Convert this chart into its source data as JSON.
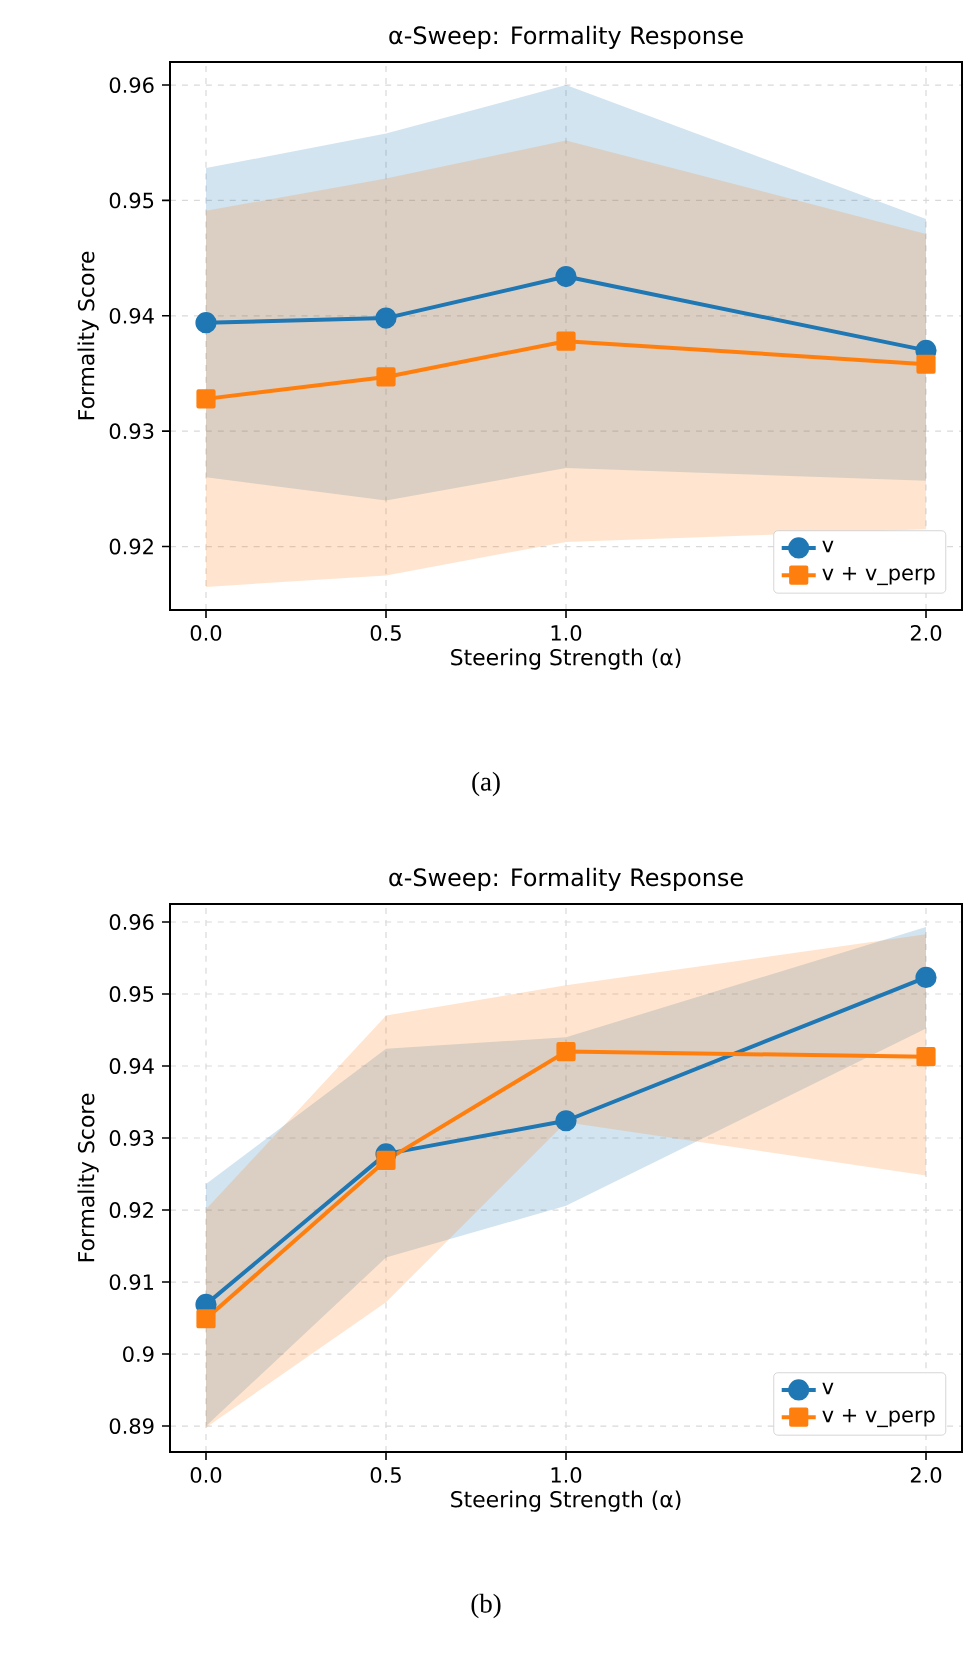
{
  "chart_data": [
    {
      "type": "line",
      "title": "α-Sweep: Formality Response",
      "xlabel": "Steering Strength (α)",
      "ylabel": "Formality Score",
      "annotations": [
        "(a)"
      ],
      "x": [
        0,
        0.5,
        1.0,
        2.0
      ],
      "xlim": [
        -0.1,
        2.1
      ],
      "ylim": [
        0.9145,
        0.962
      ],
      "xticks": [
        {
          "value": 0,
          "label": "0.0"
        },
        {
          "value": 0.5,
          "label": "0.5"
        },
        {
          "value": 1,
          "label": "1.0"
        },
        {
          "value": 2,
          "label": "2.0"
        }
      ],
      "yticks": [
        0.92,
        0.93,
        0.94,
        0.95,
        0.96
      ],
      "grid": true,
      "legend": "bottom right",
      "line_style": "solid",
      "series": [
        {
          "name": "v",
          "color": "#1f77b4",
          "marker": "circle",
          "values": [
            0.9394,
            0.9398,
            0.9434,
            0.937
          ],
          "lower": [
            0.926,
            0.924,
            0.9268,
            0.9257
          ],
          "upper": [
            0.9528,
            0.9558,
            0.96,
            0.9484
          ]
        },
        {
          "name": "v + v_perp",
          "color": "#ff7f0e",
          "marker": "square",
          "values": [
            0.9328,
            0.9347,
            0.9378,
            0.9358
          ],
          "lower": [
            0.9165,
            0.9175,
            0.9204,
            0.9215
          ],
          "upper": [
            0.9491,
            0.9519,
            0.9552,
            0.9471
          ]
        }
      ]
    },
    {
      "type": "line",
      "title": "α-Sweep: Formality Response",
      "xlabel": "Steering Strength (α)",
      "ylabel": "Formality Score",
      "annotations": [
        "(b)"
      ],
      "x": [
        0,
        0.5,
        1.0,
        2.0
      ],
      "xlim": [
        -0.1,
        2.1
      ],
      "ylim": [
        0.8864,
        0.9625
      ],
      "xticks": [
        {
          "value": 0,
          "label": "0.0"
        },
        {
          "value": 0.5,
          "label": "0.5"
        },
        {
          "value": 1,
          "label": "1.0"
        },
        {
          "value": 2,
          "label": "2.0"
        }
      ],
      "yticks": [
        0.89,
        0.9,
        0.91,
        0.92,
        0.93,
        0.94,
        0.95,
        0.96
      ],
      "grid": true,
      "legend": "bottom right",
      "line_style": "solid",
      "series": [
        {
          "name": "v",
          "color": "#1f77b4",
          "marker": "circle",
          "values": [
            0.9069,
            0.9278,
            0.9324,
            0.9523
          ],
          "lower": [
            0.89,
            0.9134,
            0.9206,
            0.9452
          ],
          "upper": [
            0.9236,
            0.9424,
            0.944,
            0.9593
          ]
        },
        {
          "name": "v + v_perp",
          "color": "#ff7f0e",
          "marker": "square",
          "values": [
            0.9049,
            0.9269,
            0.942,
            0.9413
          ],
          "lower": [
            0.8898,
            0.9072,
            0.9322,
            0.9248
          ],
          "upper": [
            0.9201,
            0.947,
            0.9512,
            0.9583
          ]
        }
      ]
    }
  ]
}
